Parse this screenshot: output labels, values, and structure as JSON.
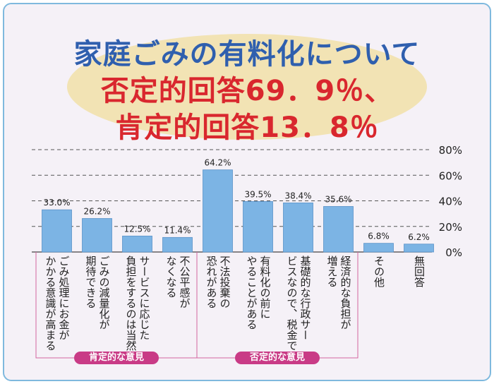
{
  "title": {
    "line1": "家庭ごみの有料化について",
    "line2": "否定的回答69．9％、",
    "line3": "肯定的回答13．8％"
  },
  "chart_data": {
    "type": "bar",
    "categories": [
      "ごみ処理にお金がかかる意識が高まる",
      "ごみの減量化が期待できる",
      "サービスに応じた負担をするのは当然",
      "不公平感がなくなる",
      "不法投棄の恐れがある",
      "有料化の前にやることがある",
      "基礎的な行政サービスなので、税金で",
      "経済的な負担が増える",
      "その他",
      "無回答"
    ],
    "label_lines": [
      [
        "ごみ処理にお金が",
        "かかる意識が高まる"
      ],
      [
        "ごみの減量化が",
        "期待できる"
      ],
      [
        "サービスに応じた",
        "負担をするのは当然"
      ],
      [
        "不公平感が",
        "なくなる"
      ],
      [
        "不法投棄の",
        "恐れがある"
      ],
      [
        "有料化の前に",
        "やることがある"
      ],
      [
        "基礎的な行政サー",
        "ビスなので、税金で"
      ],
      [
        "経済的な負担が",
        "増える"
      ],
      [
        "その他"
      ],
      [
        "無回答"
      ]
    ],
    "values": [
      33.0,
      26.2,
      12.5,
      11.4,
      64.2,
      39.5,
      38.4,
      35.6,
      6.8,
      6.2
    ],
    "value_labels": [
      "33.0%",
      "26.2%",
      "12.5%",
      "11.4%",
      "64.2%",
      "39.5%",
      "38.4%",
      "35.6%",
      "6.8%",
      "6.2%"
    ],
    "yticks": [
      "0%",
      "20%",
      "40%",
      "60%",
      "80%"
    ],
    "ylim": [
      0,
      80
    ],
    "groups": [
      {
        "label": "肯定的な意見",
        "from": 0,
        "to": 3
      },
      {
        "label": "否定的な意見",
        "from": 4,
        "to": 7
      }
    ],
    "colors": {
      "bar": "#7cb4e4",
      "bar_edge": "#5b93c8",
      "grid": "#555555",
      "group_badge": "#c93b86",
      "group_bracket": "#d4659f",
      "title_blue": "#2f5fae",
      "title_red": "#d9272e"
    }
  }
}
